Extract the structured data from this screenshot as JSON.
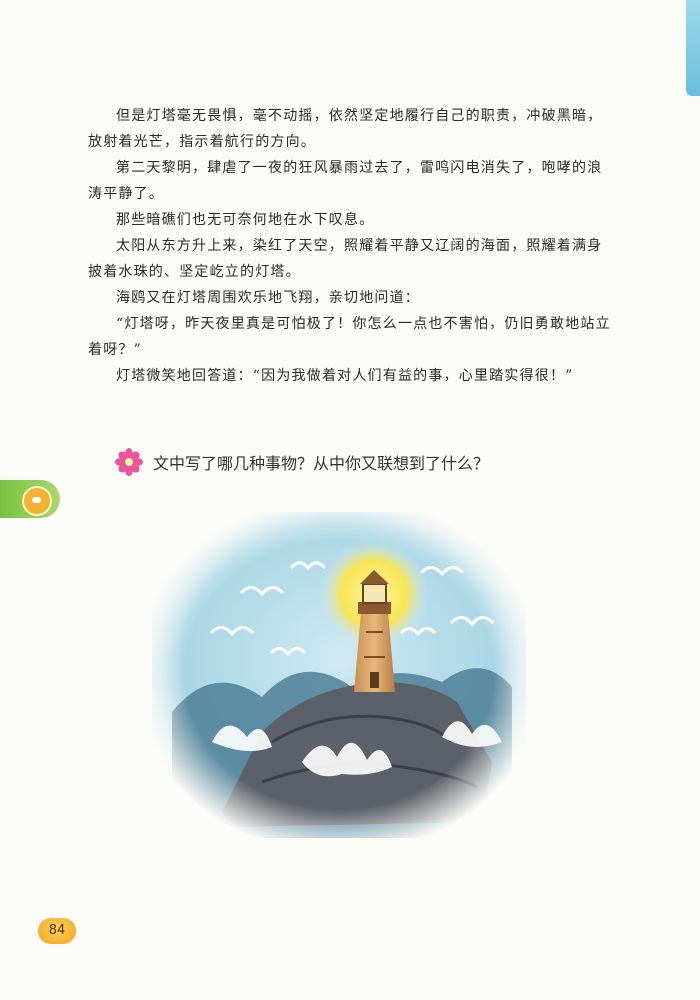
{
  "passage": {
    "paragraphs": [
      "但是灯塔毫无畏惧，毫不动摇，依然坚定地履行自己的职责，冲破黑暗，放射着光芒，指示着航行的方向。",
      "第二天黎明，肆虐了一夜的狂风暴雨过去了，雷鸣闪电消失了，咆哮的浪涛平静了。",
      "那些暗礁们也无可奈何地在水下叹息。",
      "太阳从东方升上来，染红了天空，照耀着平静又辽阔的海面，照耀着满身披着水珠的、坚定屹立的灯塔。",
      "海鸥又在灯塔周围欢乐地飞翔，亲切地问道：",
      "“灯塔呀，昨天夜里真是可怕极了！你怎么一点也不害怕，仍旧勇敢地站立着呀？”",
      "灯塔微笑地回答道：“因为我做着对人们有益的事，心里踏实得很！”"
    ]
  },
  "question": {
    "text": "文中写了哪几种事物？从中你又联想到了什么？",
    "icon": "flower-icon"
  },
  "illustration": {
    "subject": "lighthouse-on-rocks-with-seagulls"
  },
  "page_number": "84",
  "colors": {
    "tab_blue": "#69bfdc",
    "tab_green": "#7ac143",
    "page_badge": "#f3a21a",
    "flower_pink": "#e8559a"
  }
}
